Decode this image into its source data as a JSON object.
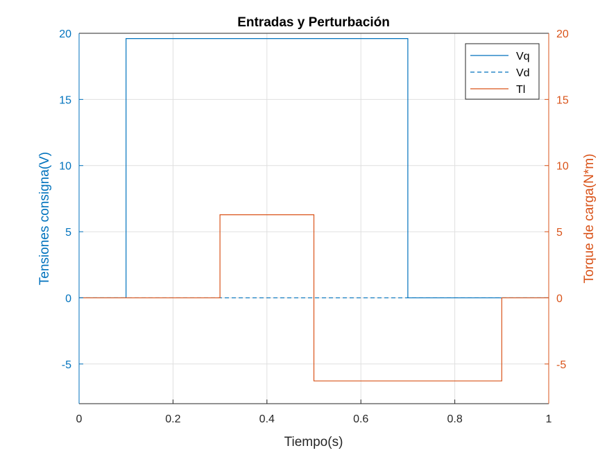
{
  "chart_data": {
    "type": "line",
    "title": "Entradas y Perturbación",
    "xlabel": "Tiempo(s)",
    "ylabel_left": "Tensiones consigna(V)",
    "ylabel_right": "Torque de carga(N*m)",
    "xlim": [
      0,
      1
    ],
    "ylim_left": [
      -8,
      20
    ],
    "ylim_right": [
      -8,
      20
    ],
    "x_ticks": [
      "0",
      "0.2",
      "0.4",
      "0.6",
      "0.8",
      "1"
    ],
    "y_ticks_left": [
      "-5",
      "0",
      "5",
      "10",
      "15",
      "20"
    ],
    "y_ticks_right": [
      "-5",
      "0",
      "5",
      "10",
      "15",
      "20"
    ],
    "grid": true,
    "legend_position": "top-right",
    "colors": {
      "left_axis": "#0072BD",
      "right_axis": "#D95319"
    },
    "series": [
      {
        "name": "Vq",
        "axis": "left",
        "style": "solid",
        "color": "#0072BD",
        "x": [
          0,
          0.1,
          0.1,
          0.7,
          0.7,
          1
        ],
        "y": [
          0,
          0,
          19.6,
          19.6,
          0,
          0
        ]
      },
      {
        "name": "Vd",
        "axis": "left",
        "style": "dashed",
        "color": "#0072BD",
        "x": [
          0,
          1
        ],
        "y": [
          0,
          0
        ]
      },
      {
        "name": "Tl",
        "axis": "right",
        "style": "solid",
        "color": "#D95319",
        "x": [
          0,
          0.3,
          0.3,
          0.5,
          0.5,
          0.9,
          0.9,
          1
        ],
        "y": [
          0,
          0,
          6.28,
          6.28,
          -6.28,
          -6.28,
          0,
          0
        ]
      }
    ]
  }
}
